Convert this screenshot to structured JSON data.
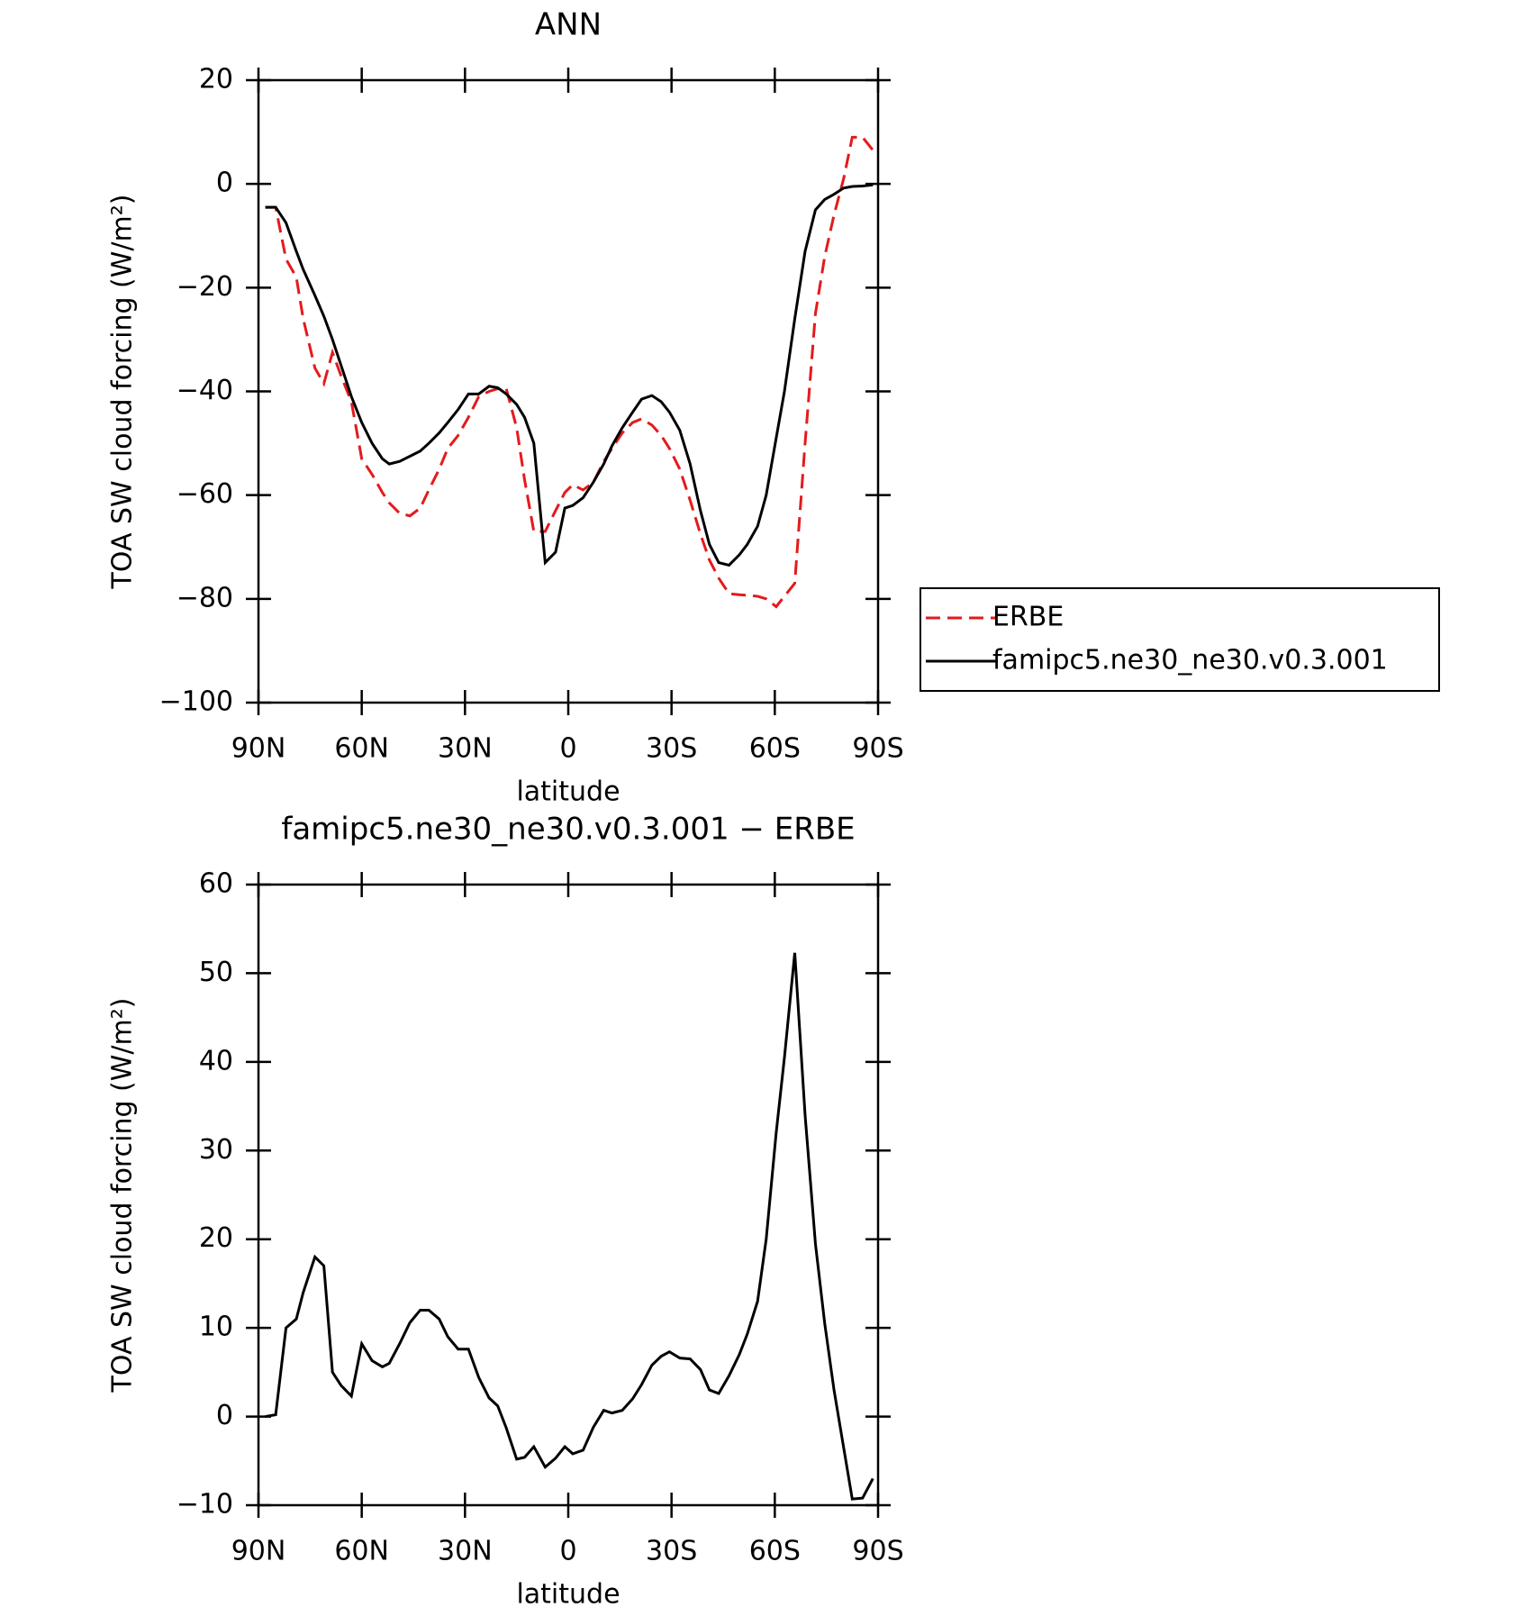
{
  "chart_data": [
    {
      "type": "line",
      "title": "ANN",
      "xlabel": "latitude",
      "ylabel": "TOA SW cloud forcing (W/m²)",
      "x": [
        88,
        85,
        82,
        79,
        77,
        73.6,
        71,
        68.5,
        66,
        63,
        60,
        57,
        54,
        52,
        49,
        46,
        43,
        40.5,
        37.5,
        35,
        32,
        29,
        26,
        23,
        20.5,
        18,
        15,
        12.7,
        10,
        6.7,
        3.7,
        1,
        -1.3,
        -4.3,
        -7.3,
        -10.3,
        -12.7,
        -15.7,
        -18.7,
        -21.3,
        -24.3,
        -27,
        -29.4,
        -32.4,
        -35.4,
        -38.4,
        -41,
        -43.7,
        -46.7,
        -49.7,
        -52,
        -55,
        -57.5,
        -60.4,
        -62.8,
        -65.8,
        -68.8,
        -71.8,
        -74.5,
        -77.2,
        -80,
        -82.5,
        -85.5,
        -88.5
      ],
      "series": [
        {
          "name": "ERBE",
          "color": "#e41a1c",
          "dash": true,
          "values": [
            -4.5,
            -4.5,
            -14.5,
            -18,
            -26,
            -35.5,
            -38.5,
            -32.5,
            -37,
            -42,
            -53,
            -56,
            -59.5,
            -61.5,
            -63.5,
            -64,
            -62.5,
            -59,
            -55,
            -51,
            -48.5,
            -45,
            -41,
            -40,
            -39.5,
            -39.5,
            -47,
            -57,
            -67,
            -67,
            -63,
            -59.5,
            -58,
            -59,
            -57.5,
            -53.5,
            -51,
            -48,
            -46,
            -45.3,
            -46.5,
            -48.5,
            -51,
            -55,
            -61,
            -67.5,
            -72.5,
            -76,
            -79,
            -79.2,
            -79.3,
            -79.5,
            -80,
            -81.5,
            -79.5,
            -77,
            -50,
            -25,
            -14,
            -6,
            1,
            9,
            9,
            6.5
          ]
        },
        {
          "name": "famipc5.ne30_ne30.v0.3.001",
          "color": "#000000",
          "dash": false,
          "values": [
            -4.5,
            -4.5,
            -7.5,
            -13,
            -16.5,
            -21.5,
            -25.5,
            -30,
            -35,
            -41,
            -46,
            -50,
            -53,
            -54,
            -53.5,
            -52.5,
            -51.5,
            -50,
            -48,
            -46,
            -43.5,
            -40.5,
            -40.5,
            -39,
            -39.3,
            -40.5,
            -42.5,
            -45,
            -50,
            -73,
            -71,
            -62.5,
            -62,
            -60.5,
            -57.5,
            -54,
            -50.5,
            -47,
            -44,
            -41.5,
            -40.8,
            -42,
            -44,
            -47.5,
            -54,
            -63,
            -69.5,
            -73,
            -73.5,
            -71.5,
            -69.5,
            -66,
            -60,
            -49,
            -40,
            -26,
            -13,
            -5,
            -3,
            -2,
            -0.8,
            -0.5,
            -0.4,
            -0.2
          ]
        }
      ],
      "xlim": [
        90,
        -90
      ],
      "xticks": [
        {
          "value": 90,
          "label": "90N"
        },
        {
          "value": 60,
          "label": "60N"
        },
        {
          "value": 30,
          "label": "30N"
        },
        0,
        {
          "value": -30,
          "label": "30S"
        },
        {
          "value": -60,
          "label": "60S"
        },
        {
          "value": -90,
          "label": "90S"
        }
      ],
      "ylim": [
        -100,
        20
      ],
      "yticks": [
        20,
        0,
        {
          "value": -20,
          "label": "−20"
        },
        {
          "value": -40,
          "label": "−40"
        },
        {
          "value": -60,
          "label": "−60"
        },
        {
          "value": -80,
          "label": "−80"
        },
        {
          "value": -100,
          "label": "−100"
        }
      ],
      "legend": "right"
    },
    {
      "type": "line",
      "title": "famipc5.ne30_ne30.v0.3.001 − ERBE",
      "xlabel": "latitude",
      "ylabel": "TOA SW cloud forcing (W/m²)",
      "x": [
        88,
        85,
        82,
        79,
        77,
        73.6,
        71,
        68.5,
        66,
        63,
        60,
        57,
        54,
        52,
        49,
        46,
        43,
        40.5,
        37.5,
        35,
        32,
        29,
        26,
        23,
        20.5,
        18,
        15,
        12.7,
        10,
        6.7,
        3.7,
        1,
        -1.3,
        -4.3,
        -7.3,
        -10.3,
        -12.7,
        -15.7,
        -18.7,
        -21.3,
        -24.3,
        -27,
        -29.4,
        -32.4,
        -35.4,
        -38.4,
        -41,
        -43.7,
        -46.7,
        -49.7,
        -52,
        -55,
        -57.5,
        -60.4,
        -62.8,
        -65.8,
        -68.8,
        -71.8,
        -74.5,
        -77.2,
        -80,
        -82.5,
        -85.5,
        -88.5
      ],
      "values": [
        0,
        0.2,
        10,
        11,
        14,
        18,
        17,
        5,
        3.5,
        2.3,
        8.2,
        6.3,
        5.6,
        6,
        8.2,
        10.6,
        12,
        12,
        11,
        9,
        7.6,
        7.6,
        4.4,
        2.1,
        1.2,
        -1.3,
        -4.8,
        -4.6,
        -3.4,
        -5.7,
        -4.7,
        -3.4,
        -4.2,
        -3.8,
        -1.2,
        0.7,
        0.4,
        0.7,
        2,
        3.6,
        5.8,
        6.8,
        7.3,
        6.6,
        6.5,
        5.3,
        3,
        2.6,
        4.6,
        7,
        9.3,
        13,
        20,
        32,
        40.5,
        52.3,
        34,
        19.5,
        10.5,
        3,
        -3.5,
        -9.3,
        -9.2,
        -7
      ],
      "color": "#000000",
      "xlim": [
        90,
        -90
      ],
      "xticks": [
        {
          "value": 90,
          "label": "90N"
        },
        {
          "value": 60,
          "label": "60N"
        },
        {
          "value": 30,
          "label": "30N"
        },
        0,
        {
          "value": -30,
          "label": "30S"
        },
        {
          "value": -60,
          "label": "60S"
        },
        {
          "value": -90,
          "label": "90S"
        }
      ],
      "ylim": [
        -10,
        60
      ],
      "yticks": [
        60,
        50,
        40,
        30,
        20,
        10,
        0,
        {
          "value": -10,
          "label": "−10"
        }
      ]
    }
  ]
}
